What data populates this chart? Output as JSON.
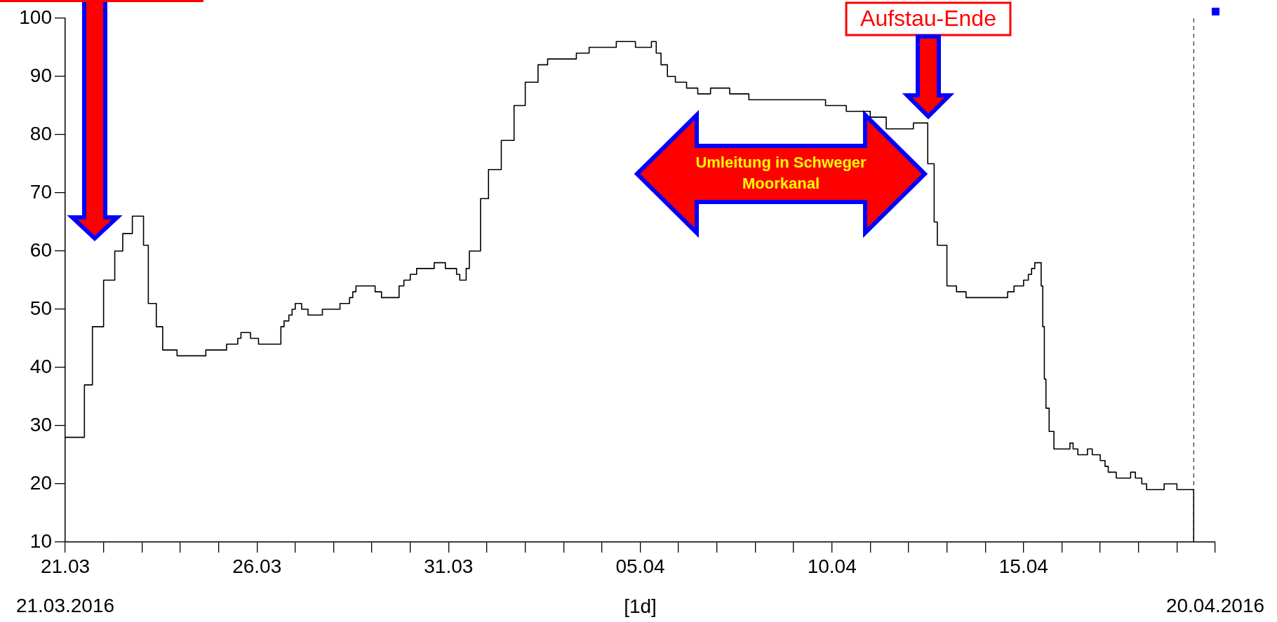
{
  "chart_data": {
    "type": "step",
    "xlabel": "[1d]",
    "xlim": [
      "2016-03-21",
      "2016-04-20"
    ],
    "xticks": [
      {
        "value": "2016-03-21",
        "label": "21.03"
      },
      {
        "value": "2016-03-22",
        "label": null
      },
      {
        "value": "2016-03-23",
        "label": null
      },
      {
        "value": "2016-03-24",
        "label": null
      },
      {
        "value": "2016-03-25",
        "label": null
      },
      {
        "value": "2016-03-26",
        "label": "26.03"
      },
      {
        "value": "2016-03-27",
        "label": null
      },
      {
        "value": "2016-03-28",
        "label": null
      },
      {
        "value": "2016-03-29",
        "label": null
      },
      {
        "value": "2016-03-30",
        "label": null
      },
      {
        "value": "2016-03-31",
        "label": "31.03"
      },
      {
        "value": "2016-04-01",
        "label": null
      },
      {
        "value": "2016-04-02",
        "label": null
      },
      {
        "value": "2016-04-03",
        "label": null
      },
      {
        "value": "2016-04-04",
        "label": null
      },
      {
        "value": "2016-04-05",
        "label": "05.04"
      },
      {
        "value": "2016-04-06",
        "label": null
      },
      {
        "value": "2016-04-07",
        "label": null
      },
      {
        "value": "2016-04-08",
        "label": null
      },
      {
        "value": "2016-04-09",
        "label": null
      },
      {
        "value": "2016-04-10",
        "label": "10.04"
      },
      {
        "value": "2016-04-11",
        "label": null
      },
      {
        "value": "2016-04-12",
        "label": null
      },
      {
        "value": "2016-04-13",
        "label": null
      },
      {
        "value": "2016-04-14",
        "label": null
      },
      {
        "value": "2016-04-15",
        "label": "15.04"
      },
      {
        "value": "2016-04-16",
        "label": null
      },
      {
        "value": "2016-04-17",
        "label": null
      },
      {
        "value": "2016-04-18",
        "label": null
      },
      {
        "value": "2016-04-19",
        "label": null
      },
      {
        "value": "2016-04-20",
        "label": null
      }
    ],
    "ylim": [
      10,
      100
    ],
    "yticks": [
      10,
      20,
      30,
      40,
      50,
      60,
      70,
      80,
      90,
      100
    ],
    "series": [
      {
        "color": "#000000",
        "x": [
          "2016-03-21T00:00",
          "2016-03-21T08:00",
          "2016-03-21T12:00",
          "2016-03-21T17:00",
          "2016-03-22T00:00",
          "2016-03-22T07:00",
          "2016-03-22T12:00",
          "2016-03-22T18:00",
          "2016-03-22T22:00",
          "2016-03-23T01:00",
          "2016-03-23T04:00",
          "2016-03-23T09:00",
          "2016-03-23T13:00",
          "2016-03-23T22:00",
          "2016-03-24T16:00",
          "2016-03-25T05:00",
          "2016-03-25T12:00",
          "2016-03-25T14:00",
          "2016-03-25T20:00",
          "2016-03-26T01:00",
          "2016-03-26T15:00",
          "2016-03-26T17:00",
          "2016-03-26T20:00",
          "2016-03-26T22:00",
          "2016-03-27T00:00",
          "2016-03-27T04:00",
          "2016-03-27T08:00",
          "2016-03-27T17:00",
          "2016-03-28T04:00",
          "2016-03-28T10:00",
          "2016-03-28T12:00",
          "2016-03-28T14:00",
          "2016-03-29T02:00",
          "2016-03-29T06:00",
          "2016-03-29T17:00",
          "2016-03-29T20:00",
          "2016-03-30T00:00",
          "2016-03-30T04:00",
          "2016-03-30T15:00",
          "2016-03-30T22:00",
          "2016-03-31T05:00",
          "2016-03-31T07:00",
          "2016-03-31T11:00",
          "2016-03-31T13:00",
          "2016-03-31T20:00",
          "2016-04-01T01:00",
          "2016-04-01T09:00",
          "2016-04-01T17:00",
          "2016-04-02T00:00",
          "2016-04-02T08:00",
          "2016-04-02T14:00",
          "2016-04-03T08:00",
          "2016-04-03T16:00",
          "2016-04-04T09:00",
          "2016-04-04T21:00",
          "2016-04-05T07:00",
          "2016-04-05T10:00",
          "2016-04-05T13:00",
          "2016-04-05T17:00",
          "2016-04-05T22:00",
          "2016-04-06T05:00",
          "2016-04-06T12:00",
          "2016-04-06T20:00",
          "2016-04-07T08:00",
          "2016-04-07T20:00",
          "2016-04-09T20:00",
          "2016-04-10T09:00",
          "2016-04-11T00:00",
          "2016-04-11T10:00",
          "2016-04-12T03:00",
          "2016-04-12T12:00",
          "2016-04-12T16:00",
          "2016-04-12T18:00",
          "2016-04-13T00:00",
          "2016-04-13T06:00",
          "2016-04-13T12:00",
          "2016-04-14T14:00",
          "2016-04-14T18:00",
          "2016-04-15T00:00",
          "2016-04-15T03:00",
          "2016-04-15T05:00",
          "2016-04-15T07:00",
          "2016-04-15T11:00",
          "2016-04-15T12:00",
          "2016-04-15T13:00",
          "2016-04-15T14:00",
          "2016-04-15T16:00",
          "2016-04-15T19:00",
          "2016-04-16T05:00",
          "2016-04-16T07:00",
          "2016-04-16T10:00",
          "2016-04-16T16:00",
          "2016-04-16T19:00",
          "2016-04-17T00:00",
          "2016-04-17T03:00",
          "2016-04-17T05:00",
          "2016-04-17T10:00",
          "2016-04-17T19:00",
          "2016-04-17T22:00",
          "2016-04-18T02:00",
          "2016-04-18T05:00",
          "2016-04-18T16:00",
          "2016-04-19T00:00",
          "2016-04-19T10:00",
          "2016-04-19T10:30"
        ],
        "values": [
          28,
          28,
          37,
          47,
          55,
          60,
          63,
          66,
          66,
          61,
          51,
          47,
          43,
          42,
          43,
          44,
          45,
          46,
          45,
          44,
          47,
          48,
          49,
          50,
          51,
          50,
          49,
          50,
          51,
          52,
          53,
          54,
          53,
          52,
          54,
          55,
          56,
          57,
          58,
          57,
          56,
          55,
          57,
          60,
          69,
          74,
          79,
          85,
          89,
          92,
          93,
          94,
          95,
          96,
          95,
          96,
          94,
          92,
          90,
          89,
          88,
          87,
          88,
          87,
          86,
          85,
          84,
          83,
          81,
          82,
          75,
          65,
          61,
          54,
          53,
          52,
          53,
          54,
          55,
          56,
          57,
          58,
          54,
          47,
          38,
          33,
          29,
          26,
          27,
          26,
          25,
          26,
          25,
          24,
          23,
          22,
          21,
          22,
          21,
          20,
          19,
          20,
          19,
          19,
          10
        ]
      }
    ],
    "ref_lines": [
      {
        "axis": "x",
        "value": "2016-04-19T10:30",
        "color": "#000000",
        "line_style": "dashed"
      }
    ],
    "annotations": [
      "Aufstau-Ende",
      "Umleitung in Schweger Moorkanal",
      "21.03.2016",
      "20.04.2016"
    ]
  }
}
